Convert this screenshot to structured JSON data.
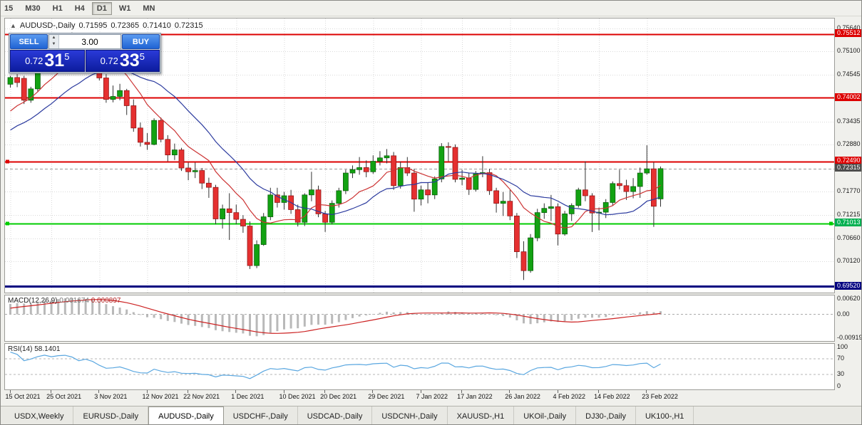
{
  "toolbar": {
    "timeframes": [
      "15",
      "M30",
      "H1",
      "H4",
      "D1",
      "W1",
      "MN"
    ],
    "active": "D1"
  },
  "chart": {
    "symbol_period": "AUDUSD-,Daily",
    "open": "0.71595",
    "high": "0.72365",
    "low": "0.71410",
    "close": "0.72315"
  },
  "trade_panel": {
    "sell_label": "SELL",
    "buy_label": "BUY",
    "volume": "3.00",
    "sell_price": {
      "prefix": "0.72",
      "big": "31",
      "sup": "5"
    },
    "buy_price": {
      "prefix": "0.72",
      "big": "33",
      "sup": "5"
    }
  },
  "chart_data": {
    "type": "candlestick",
    "symbol": "AUDUSD",
    "timeframe": "Daily",
    "ylim": [
      0.69369,
      0.75882
    ],
    "y_grid_labels": [
      "0.75640",
      "0.75100",
      "0.74545",
      "0.73435",
      "0.72880",
      "0.71770",
      "0.71215",
      "0.70660",
      "0.70120"
    ],
    "date_ticks": [
      {
        "i": 0,
        "label": "15 Oct 2021"
      },
      {
        "i": 6,
        "label": "25 Oct 2021"
      },
      {
        "i": 13,
        "label": "3 Nov 2021"
      },
      {
        "i": 20,
        "label": "12 Nov 2021"
      },
      {
        "i": 26,
        "label": "22 Nov 2021"
      },
      {
        "i": 33,
        "label": "1 Dec 2021"
      },
      {
        "i": 40,
        "label": "10 Dec 2021"
      },
      {
        "i": 46,
        "label": "20 Dec 2021"
      },
      {
        "i": 53,
        "label": "29 Dec 2021"
      },
      {
        "i": 60,
        "label": "7 Jan 2022"
      },
      {
        "i": 66,
        "label": "17 Jan 2022"
      },
      {
        "i": 73,
        "label": "26 Jan 2022"
      },
      {
        "i": 80,
        "label": "4 Feb 2022"
      },
      {
        "i": 86,
        "label": "14 Feb 2022"
      },
      {
        "i": 93,
        "label": "23 Feb 2022"
      }
    ],
    "levels": [
      {
        "price": 0.75512,
        "label": "0.75512",
        "color": "#dd0000",
        "label_bg": "#dd0000",
        "width": 2,
        "kind": "resistance"
      },
      {
        "price": 0.74002,
        "label": "0.74002",
        "color": "#dd0000",
        "label_bg": "#dd0000",
        "width": 2,
        "kind": "resistance"
      },
      {
        "price": 0.7249,
        "label": "0.72490",
        "color": "#dd0000",
        "label_bg": "#dd0000",
        "width": 2,
        "kind": "resistance",
        "marker_left": true
      },
      {
        "price": 0.71013,
        "label": "0.71013",
        "color": "#00cc00",
        "label_bg": "#00b050",
        "width": 2,
        "kind": "support",
        "endpoints": true
      },
      {
        "price": 0.6952,
        "label": "0.69520",
        "color": "#000080",
        "label_bg": "#000080",
        "width": 3,
        "kind": "support"
      }
    ],
    "bid": {
      "price": 0.72315,
      "label": "0.72315",
      "label_bg": "#4d4d4d"
    },
    "moving_averages": [
      {
        "period": 9,
        "color": "#cc3333",
        "name": "ma-fast"
      },
      {
        "period": 18,
        "color": "#2b3a9e",
        "name": "ma-slow"
      }
    ],
    "pre_history_closes": [
      0.7262,
      0.7255,
      0.7248,
      0.7252,
      0.726,
      0.7268,
      0.726,
      0.7254,
      0.7248,
      0.7242,
      0.7236,
      0.723,
      0.724,
      0.7252,
      0.7261,
      0.7255,
      0.7268,
      0.728,
      0.7292,
      0.7285,
      0.7298,
      0.731,
      0.7322,
      0.7315,
      0.733,
      0.7345,
      0.736,
      0.7378,
      0.7398,
      0.7418
    ],
    "candles": [
      [
        0.7432,
        0.7452,
        0.7424,
        0.7448
      ],
      [
        0.7448,
        0.7456,
        0.7425,
        0.7436
      ],
      [
        0.7446,
        0.7452,
        0.7385,
        0.7394
      ],
      [
        0.7394,
        0.7426,
        0.7388,
        0.7421
      ],
      [
        0.7421,
        0.7478,
        0.7415,
        0.7473
      ],
      [
        0.7473,
        0.7521,
        0.7468,
        0.7513
      ],
      [
        0.7513,
        0.7526,
        0.7489,
        0.7499
      ],
      [
        0.7499,
        0.7536,
        0.7494,
        0.753
      ],
      [
        0.753,
        0.7548,
        0.7509,
        0.7541
      ],
      [
        0.7541,
        0.7555,
        0.7519,
        0.7526
      ],
      [
        0.7526,
        0.7536,
        0.7481,
        0.749
      ],
      [
        0.749,
        0.7529,
        0.7484,
        0.7522
      ],
      [
        0.7522,
        0.7536,
        0.7489,
        0.7498
      ],
      [
        0.7498,
        0.7503,
        0.7441,
        0.7447
      ],
      [
        0.7447,
        0.7456,
        0.7388,
        0.7396
      ],
      [
        0.7396,
        0.7429,
        0.7389,
        0.7403
      ],
      [
        0.7403,
        0.7433,
        0.7394,
        0.7417
      ],
      [
        0.7417,
        0.7421,
        0.7359,
        0.7381
      ],
      [
        0.7381,
        0.7396,
        0.7319,
        0.7328
      ],
      [
        0.7328,
        0.7341,
        0.7284,
        0.7294
      ],
      [
        0.7294,
        0.7316,
        0.7276,
        0.7289
      ],
      [
        0.7289,
        0.7351,
        0.7287,
        0.7346
      ],
      [
        0.7346,
        0.7353,
        0.7294,
        0.7301
      ],
      [
        0.7301,
        0.7311,
        0.7249,
        0.7264
      ],
      [
        0.7264,
        0.7291,
        0.7252,
        0.7276
      ],
      [
        0.7276,
        0.7281,
        0.7226,
        0.7233
      ],
      [
        0.7233,
        0.7246,
        0.7204,
        0.7224
      ],
      [
        0.7224,
        0.7246,
        0.7209,
        0.7227
      ],
      [
        0.7227,
        0.7233,
        0.7183,
        0.7197
      ],
      [
        0.7197,
        0.721,
        0.7162,
        0.7187
      ],
      [
        0.7187,
        0.7193,
        0.7099,
        0.7112
      ],
      [
        0.7112,
        0.7146,
        0.7089,
        0.7136
      ],
      [
        0.7136,
        0.7173,
        0.7062,
        0.7127
      ],
      [
        0.7127,
        0.7146,
        0.7099,
        0.7111
      ],
      [
        0.7111,
        0.7121,
        0.7079,
        0.7095
      ],
      [
        0.7095,
        0.7106,
        0.6993,
        0.7001
      ],
      [
        0.7001,
        0.7061,
        0.6995,
        0.7051
      ],
      [
        0.7051,
        0.7126,
        0.7048,
        0.7117
      ],
      [
        0.7117,
        0.7186,
        0.7109,
        0.7169
      ],
      [
        0.7169,
        0.7186,
        0.7139,
        0.7151
      ],
      [
        0.7151,
        0.7176,
        0.7134,
        0.7167
      ],
      [
        0.7167,
        0.7181,
        0.7124,
        0.7134
      ],
      [
        0.7134,
        0.7146,
        0.7094,
        0.7104
      ],
      [
        0.7104,
        0.7173,
        0.7095,
        0.7169
      ],
      [
        0.7169,
        0.7224,
        0.7154,
        0.7181
      ],
      [
        0.7181,
        0.7191,
        0.7116,
        0.7124
      ],
      [
        0.7124,
        0.7131,
        0.7081,
        0.7104
      ],
      [
        0.7104,
        0.7156,
        0.7099,
        0.7149
      ],
      [
        0.7149,
        0.7186,
        0.7139,
        0.7179
      ],
      [
        0.7179,
        0.7229,
        0.7171,
        0.7221
      ],
      [
        0.7221,
        0.7239,
        0.7209,
        0.7229
      ],
      [
        0.7229,
        0.7259,
        0.7217,
        0.7234
      ],
      [
        0.7234,
        0.7251,
        0.7211,
        0.7224
      ],
      [
        0.7224,
        0.7263,
        0.7219,
        0.7249
      ],
      [
        0.7249,
        0.7273,
        0.7239,
        0.7257
      ],
      [
        0.7257,
        0.7278,
        0.7244,
        0.7262
      ],
      [
        0.7262,
        0.7271,
        0.7181,
        0.7191
      ],
      [
        0.7191,
        0.7248,
        0.7184,
        0.7234
      ],
      [
        0.7234,
        0.7259,
        0.7214,
        0.7221
      ],
      [
        0.7221,
        0.7231,
        0.7129,
        0.7159
      ],
      [
        0.7159,
        0.7191,
        0.7144,
        0.7181
      ],
      [
        0.7181,
        0.7199,
        0.7149,
        0.7169
      ],
      [
        0.7169,
        0.7213,
        0.7159,
        0.7207
      ],
      [
        0.7207,
        0.7292,
        0.7199,
        0.7284
      ],
      [
        0.7284,
        0.7294,
        0.7249,
        0.7282
      ],
      [
        0.7282,
        0.7289,
        0.7199,
        0.7206
      ],
      [
        0.7206,
        0.7229,
        0.7192,
        0.7209
      ],
      [
        0.7209,
        0.7221,
        0.7169,
        0.7182
      ],
      [
        0.7182,
        0.7226,
        0.7177,
        0.7219
      ],
      [
        0.7219,
        0.7261,
        0.7211,
        0.7222
      ],
      [
        0.7222,
        0.7231,
        0.7169,
        0.7179
      ],
      [
        0.7179,
        0.7186,
        0.7127,
        0.7149
      ],
      [
        0.7149,
        0.7176,
        0.7119,
        0.7154
      ],
      [
        0.7154,
        0.7181,
        0.7109,
        0.7119
      ],
      [
        0.7119,
        0.7126,
        0.7019,
        0.7034
      ],
      [
        0.7034,
        0.7059,
        0.6967,
        0.6989
      ],
      [
        0.6989,
        0.7076,
        0.6984,
        0.7067
      ],
      [
        0.7067,
        0.7136,
        0.7059,
        0.7127
      ],
      [
        0.7127,
        0.7149,
        0.7112,
        0.7137
      ],
      [
        0.7137,
        0.7169,
        0.7107,
        0.7141
      ],
      [
        0.7141,
        0.7149,
        0.7049,
        0.7076
      ],
      [
        0.7076,
        0.7131,
        0.7072,
        0.7124
      ],
      [
        0.7124,
        0.7149,
        0.7107,
        0.7144
      ],
      [
        0.7144,
        0.7186,
        0.7139,
        0.7181
      ],
      [
        0.7181,
        0.7249,
        0.7154,
        0.7167
      ],
      [
        0.7167,
        0.7173,
        0.7081,
        0.7126
      ],
      [
        0.7126,
        0.7139,
        0.7085,
        0.7128
      ],
      [
        0.7128,
        0.7159,
        0.7114,
        0.7151
      ],
      [
        0.7151,
        0.7201,
        0.7144,
        0.7196
      ],
      [
        0.7196,
        0.7229,
        0.7182,
        0.7191
      ],
      [
        0.7191,
        0.7205,
        0.7157,
        0.7177
      ],
      [
        0.7177,
        0.7209,
        0.7161,
        0.7189
      ],
      [
        0.7189,
        0.7234,
        0.7162,
        0.7221
      ],
      [
        0.7221,
        0.7287,
        0.7217,
        0.7231
      ],
      [
        0.7231,
        0.7247,
        0.7093,
        0.7142
      ],
      [
        0.71595,
        0.72365,
        0.7141,
        0.72315
      ]
    ],
    "macd": {
      "name": "MACD(12,26,9)",
      "value_main": "0.001674",
      "value_signal": "0.000897",
      "fast": 12,
      "slow": 26,
      "signal": 9,
      "range": [
        -0.00919,
        0.0062
      ],
      "axis_labels": [
        "0.00620",
        "0.00",
        "-0.00919"
      ],
      "hist_color": "#b9b9b9",
      "signal_color": "#cc2222"
    },
    "rsi": {
      "name": "RSI(14)",
      "value": "58.1401",
      "period": 14,
      "levels": [
        70,
        30
      ],
      "axis_labels": [
        "100",
        "70",
        "30",
        "0"
      ],
      "color": "#5aa7e0"
    },
    "colors": {
      "bull": "#12a212",
      "bear": "#e53030",
      "bull_border": "#0a5c0a",
      "bear_border": "#8e1515",
      "wick": "#333333",
      "grid": "#d9d9d9"
    }
  },
  "tabs": {
    "items": [
      "USDX,Weekly",
      "EURUSD-,Daily",
      "AUDUSD-,Daily",
      "USDCHF-,Daily",
      "USDCAD-,Daily",
      "USDCNH-,Daily",
      "XAUUSD-,H1",
      "UKOil-,Daily",
      "DJ30-,Daily",
      "UK100-,H1"
    ],
    "active": "AUDUSD-,Daily"
  }
}
